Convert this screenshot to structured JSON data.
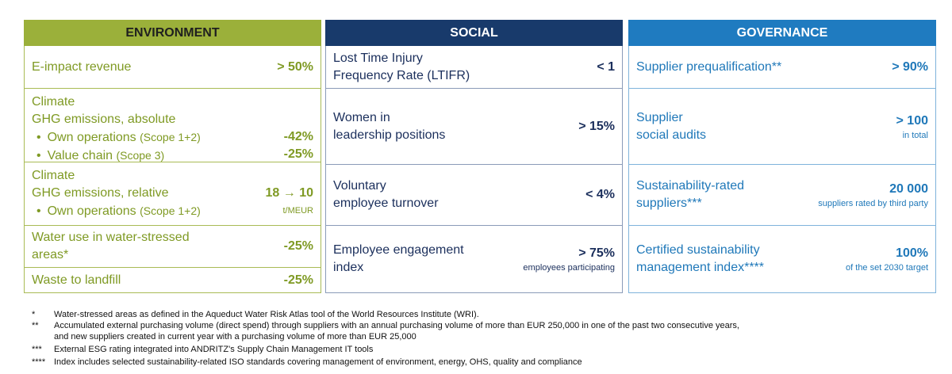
{
  "columns": [
    {
      "header": "ENVIRONMENT",
      "rows": [
        {
          "lines": [
            "E-impact revenue"
          ],
          "value": "> 50%"
        },
        {
          "lines": [
            "Climate",
            "GHG emissions, absolute"
          ],
          "items": [
            {
              "label": "Own operations",
              "scope": "(Scope 1+2)",
              "value": "-42%"
            },
            {
              "label": "Value chain",
              "scope": "(Scope 3)",
              "value": "-25%"
            }
          ]
        },
        {
          "lines": [
            "Climate",
            "GHG emissions, relative"
          ],
          "value": "18 → 10",
          "note": "t/MEUR",
          "items": [
            {
              "label": "Own operations",
              "scope": "(Scope 1+2)"
            }
          ]
        },
        {
          "lines": [
            "Water use in water-stressed",
            "areas*"
          ],
          "value": "-25%"
        },
        {
          "lines": [
            "Waste to landfill"
          ],
          "value": "-25%"
        }
      ]
    },
    {
      "header": "SOCIAL",
      "rows": [
        {
          "lines": [
            "Lost Time Injury",
            "Frequency Rate (LTIFR)"
          ],
          "value": "< 1"
        },
        {
          "lines": [
            "Women in",
            "leadership positions"
          ],
          "value": "> 15%"
        },
        {
          "lines": [
            "Voluntary",
            "employee turnover"
          ],
          "value": "< 4%"
        },
        {
          "lines": [
            "Employee engagement",
            "index"
          ],
          "value": "> 75%",
          "note": "employees participating"
        }
      ]
    },
    {
      "header": "GOVERNANCE",
      "rows": [
        {
          "lines": [
            "Supplier prequalification**"
          ],
          "value": "> 90%"
        },
        {
          "lines": [
            "Supplier",
            "social audits"
          ],
          "value": "> 100",
          "note": "in total"
        },
        {
          "lines": [
            "Sustainability-rated",
            "suppliers***"
          ],
          "value": "20 000",
          "note": "suppliers rated by third party"
        },
        {
          "lines": [
            "Certified sustainability",
            "management index****"
          ],
          "value": "100%",
          "note": "of the set 2030 target"
        }
      ]
    }
  ],
  "footnotes": [
    {
      "marker": "*",
      "lines": [
        "Water-stressed areas as defined in the Aqueduct Water Risk Atlas tool of the World Resources Institute (WRI)."
      ]
    },
    {
      "marker": "**",
      "lines": [
        "Accumulated external purchasing volume (direct spend) through suppliers with an annual purchasing volume of more than EUR 250,000 in one of the past two consecutive years,",
        "and new suppliers created in current year with a purchasing volume of more than EUR 25,000"
      ]
    },
    {
      "marker": "***",
      "lines": [
        "External ESG rating integrated into ANDRITZ's Supply Chain Management IT tools"
      ]
    },
    {
      "marker": "****",
      "lines": [
        "Index includes selected sustainability-related ISO standards covering management of environment, energy, OHS, quality and compliance"
      ]
    }
  ]
}
